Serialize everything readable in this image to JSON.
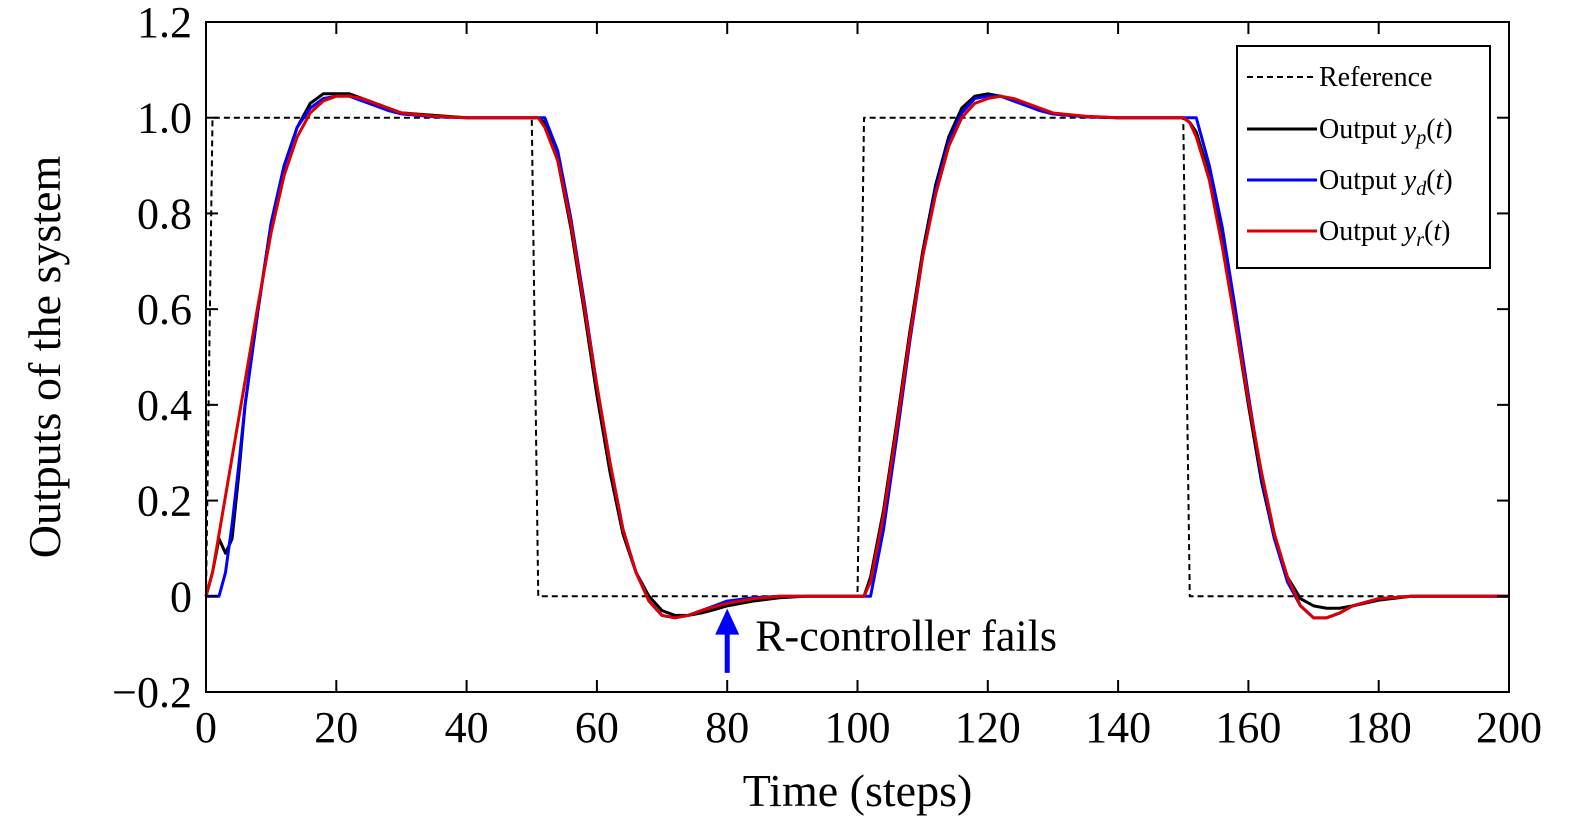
{
  "chart_data": {
    "type": "line",
    "title": "",
    "xlabel": "Time (steps)",
    "ylabel": "Outputs of the system",
    "xlim": [
      0,
      200
    ],
    "ylim": [
      -0.2,
      1.2
    ],
    "xticks": [
      0,
      20,
      40,
      60,
      80,
      100,
      120,
      140,
      160,
      180,
      200
    ],
    "yticks": [
      -0.2,
      0,
      0.2,
      0.4,
      0.6,
      0.8,
      1.0,
      1.2
    ],
    "xtick_labels": [
      "0",
      "20",
      "40",
      "60",
      "80",
      "100",
      "120",
      "140",
      "160",
      "180",
      "200"
    ],
    "ytick_labels": [
      "−0.2",
      "0",
      "0.2",
      "0.4",
      "0.6",
      "0.8",
      "1.0",
      "1.2"
    ],
    "grid": false,
    "legend_position": "top-right",
    "series": [
      {
        "name": "Reference",
        "color": "#000000",
        "style": "dashed",
        "x": [
          0,
          1,
          50,
          51,
          100,
          101,
          150,
          151,
          200
        ],
        "y": [
          0,
          1,
          1,
          0,
          0,
          1,
          1,
          0,
          0
        ]
      },
      {
        "name": "Output y_p(t)",
        "legend_prefix": "Output ",
        "legend_var": "y",
        "legend_sub": "p",
        "legend_suffix": "(t)",
        "color": "#000000",
        "style": "solid",
        "x": [
          0,
          1,
          2,
          3,
          4,
          5,
          6,
          8,
          10,
          12,
          14,
          16,
          18,
          20,
          22,
          24,
          26,
          28,
          30,
          35,
          40,
          45,
          50,
          51,
          52,
          54,
          56,
          58,
          60,
          62,
          64,
          66,
          68,
          70,
          72,
          74,
          76,
          78,
          80,
          84,
          88,
          92,
          96,
          100,
          101,
          102,
          104,
          106,
          108,
          110,
          112,
          114,
          116,
          118,
          120,
          122,
          124,
          126,
          128,
          130,
          135,
          140,
          145,
          150,
          151,
          152,
          154,
          156,
          158,
          160,
          162,
          164,
          166,
          168,
          170,
          172,
          174,
          176,
          180,
          185,
          190,
          195,
          200
        ],
        "y": [
          0,
          0.05,
          0.12,
          0.09,
          0.12,
          0.25,
          0.4,
          0.6,
          0.78,
          0.9,
          0.98,
          1.03,
          1.05,
          1.05,
          1.05,
          1.04,
          1.03,
          1.02,
          1.01,
          1.005,
          1.0,
          1.0,
          1.0,
          1.0,
          0.99,
          0.91,
          0.77,
          0.6,
          0.42,
          0.26,
          0.13,
          0.05,
          0.0,
          -0.03,
          -0.04,
          -0.04,
          -0.035,
          -0.028,
          -0.02,
          -0.01,
          -0.003,
          0.0,
          0.0,
          0.0,
          0.0,
          0.04,
          0.18,
          0.36,
          0.55,
          0.72,
          0.86,
          0.96,
          1.02,
          1.045,
          1.05,
          1.045,
          1.035,
          1.025,
          1.015,
          1.008,
          1.002,
          1.0,
          1.0,
          1.0,
          0.99,
          0.97,
          0.88,
          0.74,
          0.57,
          0.4,
          0.24,
          0.12,
          0.04,
          -0.005,
          -0.02,
          -0.025,
          -0.025,
          -0.02,
          -0.008,
          0.0,
          0.0,
          0.0,
          0.0
        ]
      },
      {
        "name": "Output y_d(t)",
        "legend_prefix": "Output ",
        "legend_var": "y",
        "legend_sub": "d",
        "legend_suffix": "(t)",
        "color": "#0000ff",
        "style": "solid",
        "x": [
          0,
          1,
          2,
          3,
          4,
          5,
          6,
          8,
          10,
          12,
          14,
          16,
          18,
          20,
          22,
          24,
          26,
          28,
          30,
          35,
          40,
          45,
          50,
          51,
          52,
          54,
          56,
          58,
          60,
          62,
          64,
          66,
          68,
          70,
          72,
          74,
          76,
          78,
          80,
          84,
          88,
          92,
          96,
          100,
          101,
          102,
          104,
          106,
          108,
          110,
          112,
          114,
          116,
          118,
          120,
          122,
          124,
          126,
          128,
          130,
          135,
          140,
          145,
          150,
          151,
          152,
          154,
          156,
          158,
          160,
          162,
          164,
          166,
          168,
          170,
          172,
          174,
          176,
          180,
          185,
          190,
          195,
          200
        ],
        "y": [
          0,
          0.0,
          0.0,
          0.05,
          0.15,
          0.27,
          0.4,
          0.6,
          0.78,
          0.9,
          0.98,
          1.02,
          1.04,
          1.045,
          1.045,
          1.035,
          1.025,
          1.015,
          1.008,
          1.002,
          1.0,
          1.0,
          1.0,
          1.0,
          1.0,
          0.93,
          0.79,
          0.62,
          0.44,
          0.28,
          0.14,
          0.05,
          -0.01,
          -0.04,
          -0.045,
          -0.04,
          -0.03,
          -0.02,
          -0.01,
          -0.003,
          0.0,
          0.0,
          0.0,
          0.0,
          0.0,
          0.0,
          0.14,
          0.33,
          0.53,
          0.71,
          0.85,
          0.95,
          1.01,
          1.04,
          1.045,
          1.045,
          1.035,
          1.025,
          1.015,
          1.008,
          1.002,
          1.0,
          1.0,
          1.0,
          1.0,
          1.0,
          0.9,
          0.77,
          0.6,
          0.42,
          0.25,
          0.12,
          0.03,
          -0.02,
          -0.045,
          -0.045,
          -0.035,
          -0.02,
          -0.005,
          0.0,
          0.0,
          0.0,
          0.0
        ]
      },
      {
        "name": "Output y_r(t)",
        "legend_prefix": "Output ",
        "legend_var": "y",
        "legend_sub": "r",
        "legend_suffix": "(t)",
        "color": "#dd0000",
        "style": "solid",
        "x": [
          0,
          1,
          2,
          3,
          4,
          5,
          6,
          8,
          10,
          12,
          14,
          16,
          18,
          20,
          22,
          24,
          26,
          28,
          30,
          35,
          40,
          45,
          50,
          51,
          52,
          54,
          56,
          58,
          60,
          62,
          64,
          66,
          68,
          70,
          72,
          74,
          76,
          78,
          80,
          84,
          88,
          92,
          96,
          100,
          101,
          102,
          104,
          106,
          108,
          110,
          112,
          114,
          116,
          118,
          120,
          122,
          124,
          126,
          128,
          130,
          135,
          140,
          145,
          150,
          151,
          152,
          154,
          156,
          158,
          160,
          162,
          164,
          166,
          168,
          170,
          172,
          174,
          176,
          180,
          185,
          190,
          195,
          200
        ],
        "y": [
          0,
          0.05,
          0.13,
          0.21,
          0.29,
          0.37,
          0.45,
          0.61,
          0.76,
          0.88,
          0.96,
          1.01,
          1.035,
          1.045,
          1.045,
          1.04,
          1.03,
          1.02,
          1.01,
          1.003,
          1.0,
          1.0,
          1.0,
          1.0,
          0.98,
          0.91,
          0.78,
          0.61,
          0.44,
          0.28,
          0.14,
          0.05,
          -0.01,
          -0.04,
          -0.045,
          -0.04,
          -0.03,
          -0.022,
          -0.015,
          -0.005,
          0.0,
          0.0,
          0.0,
          0.0,
          0.0,
          0.03,
          0.17,
          0.35,
          0.54,
          0.71,
          0.84,
          0.94,
          1.0,
          1.03,
          1.04,
          1.045,
          1.04,
          1.03,
          1.02,
          1.01,
          1.003,
          1.0,
          1.0,
          1.0,
          0.99,
          0.96,
          0.87,
          0.73,
          0.57,
          0.41,
          0.26,
          0.13,
          0.04,
          -0.02,
          -0.045,
          -0.045,
          -0.035,
          -0.02,
          -0.005,
          0.0,
          0.0,
          0.0,
          0.0
        ]
      }
    ],
    "annotations": [
      {
        "text": "R-controller fails",
        "arrow_color": "#0000ff",
        "arrow_x": 80,
        "arrow_tip_y": -0.03,
        "arrow_tail_y": -0.16
      }
    ]
  }
}
